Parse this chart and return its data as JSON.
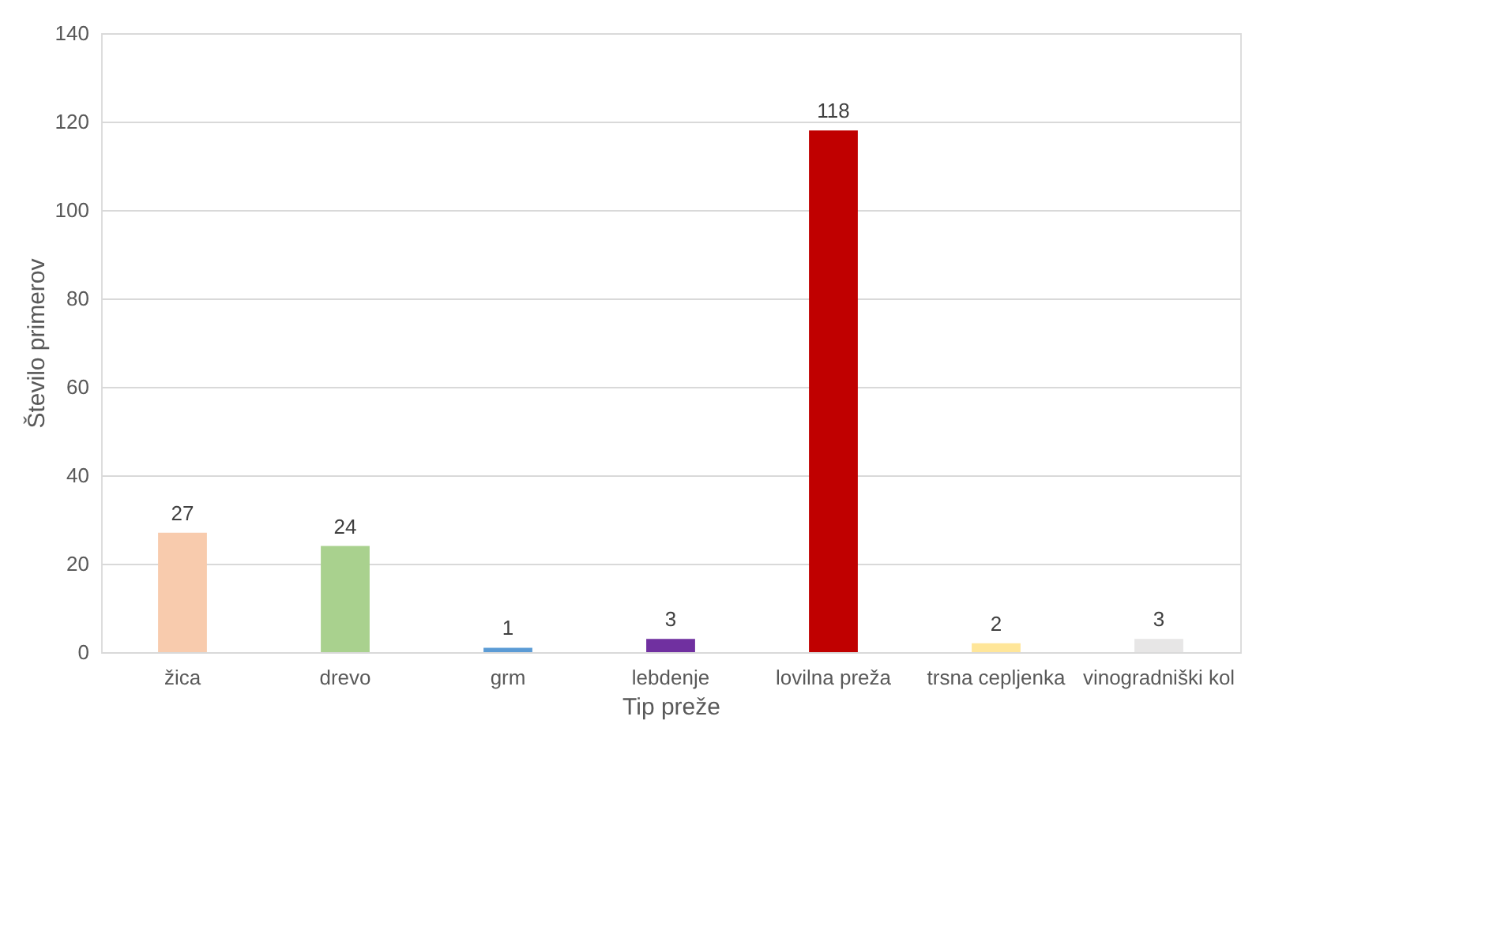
{
  "chart_data": {
    "type": "bar",
    "categories": [
      "žica",
      "drevo",
      "grm",
      "lebdenje",
      "lovilna preža",
      "trsna cepljenka",
      "vinogradniški kol"
    ],
    "values": [
      27,
      24,
      1,
      3,
      118,
      2,
      3
    ],
    "colors": [
      "#f8cbad",
      "#a9d18e",
      "#5b9bd5",
      "#7030a0",
      "#c00000",
      "#ffe699",
      "#e7e6e6"
    ],
    "xlabel": "Tip preže",
    "ylabel": "Število primerov",
    "ylim": [
      0,
      140
    ],
    "yticks": [
      0,
      20,
      40,
      60,
      80,
      100,
      120,
      140
    ],
    "grid": "y",
    "data_labels": true,
    "legend": false
  }
}
